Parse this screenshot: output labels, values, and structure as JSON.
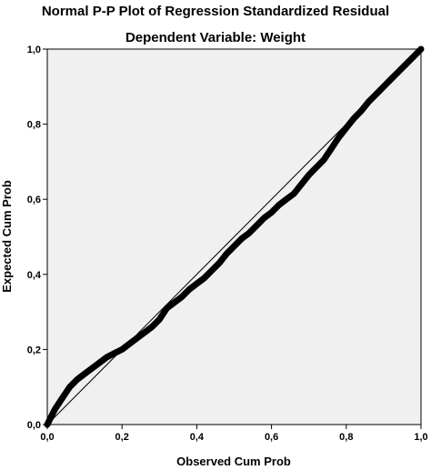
{
  "chart_data": {
    "type": "line",
    "title": "Normal P-P Plot of Regression Standardized Residual",
    "subtitle": "Dependent Variable: Weight",
    "xlabel": "Observed Cum Prob",
    "ylabel": "Expected Cum Prob",
    "xlim": [
      0.0,
      1.0
    ],
    "ylim": [
      0.0,
      1.0
    ],
    "x_ticks": [
      "0,0",
      "0,2",
      "0,4",
      "0,6",
      "0,8",
      "1,0"
    ],
    "y_ticks": [
      "0,0",
      "0,2",
      "0,4",
      "0,6",
      "0,8",
      "1,0"
    ],
    "grid": false,
    "reference_line": {
      "x": [
        0.0,
        1.0
      ],
      "y": [
        0.0,
        1.0
      ]
    },
    "series": [
      {
        "x": [
          0.0,
          0.02,
          0.04,
          0.06,
          0.08,
          0.1,
          0.12,
          0.14,
          0.16,
          0.18,
          0.2,
          0.22,
          0.24,
          0.26,
          0.28,
          0.3,
          0.32,
          0.34,
          0.36,
          0.38,
          0.4,
          0.42,
          0.44,
          0.46,
          0.48,
          0.5,
          0.52,
          0.54,
          0.56,
          0.58,
          0.6,
          0.62,
          0.64,
          0.66,
          0.68,
          0.7,
          0.72,
          0.74,
          0.76,
          0.78,
          0.8,
          0.82,
          0.84,
          0.86,
          0.88,
          0.9,
          0.92,
          0.94,
          0.96,
          0.98,
          1.0
        ],
        "y": [
          0.0,
          0.04,
          0.07,
          0.1,
          0.12,
          0.135,
          0.15,
          0.165,
          0.18,
          0.19,
          0.2,
          0.215,
          0.23,
          0.245,
          0.26,
          0.28,
          0.31,
          0.325,
          0.34,
          0.36,
          0.375,
          0.39,
          0.41,
          0.43,
          0.455,
          0.475,
          0.495,
          0.51,
          0.53,
          0.55,
          0.565,
          0.585,
          0.6,
          0.615,
          0.64,
          0.665,
          0.685,
          0.705,
          0.735,
          0.765,
          0.79,
          0.815,
          0.835,
          0.86,
          0.88,
          0.9,
          0.92,
          0.94,
          0.96,
          0.98,
          1.0
        ]
      }
    ]
  }
}
